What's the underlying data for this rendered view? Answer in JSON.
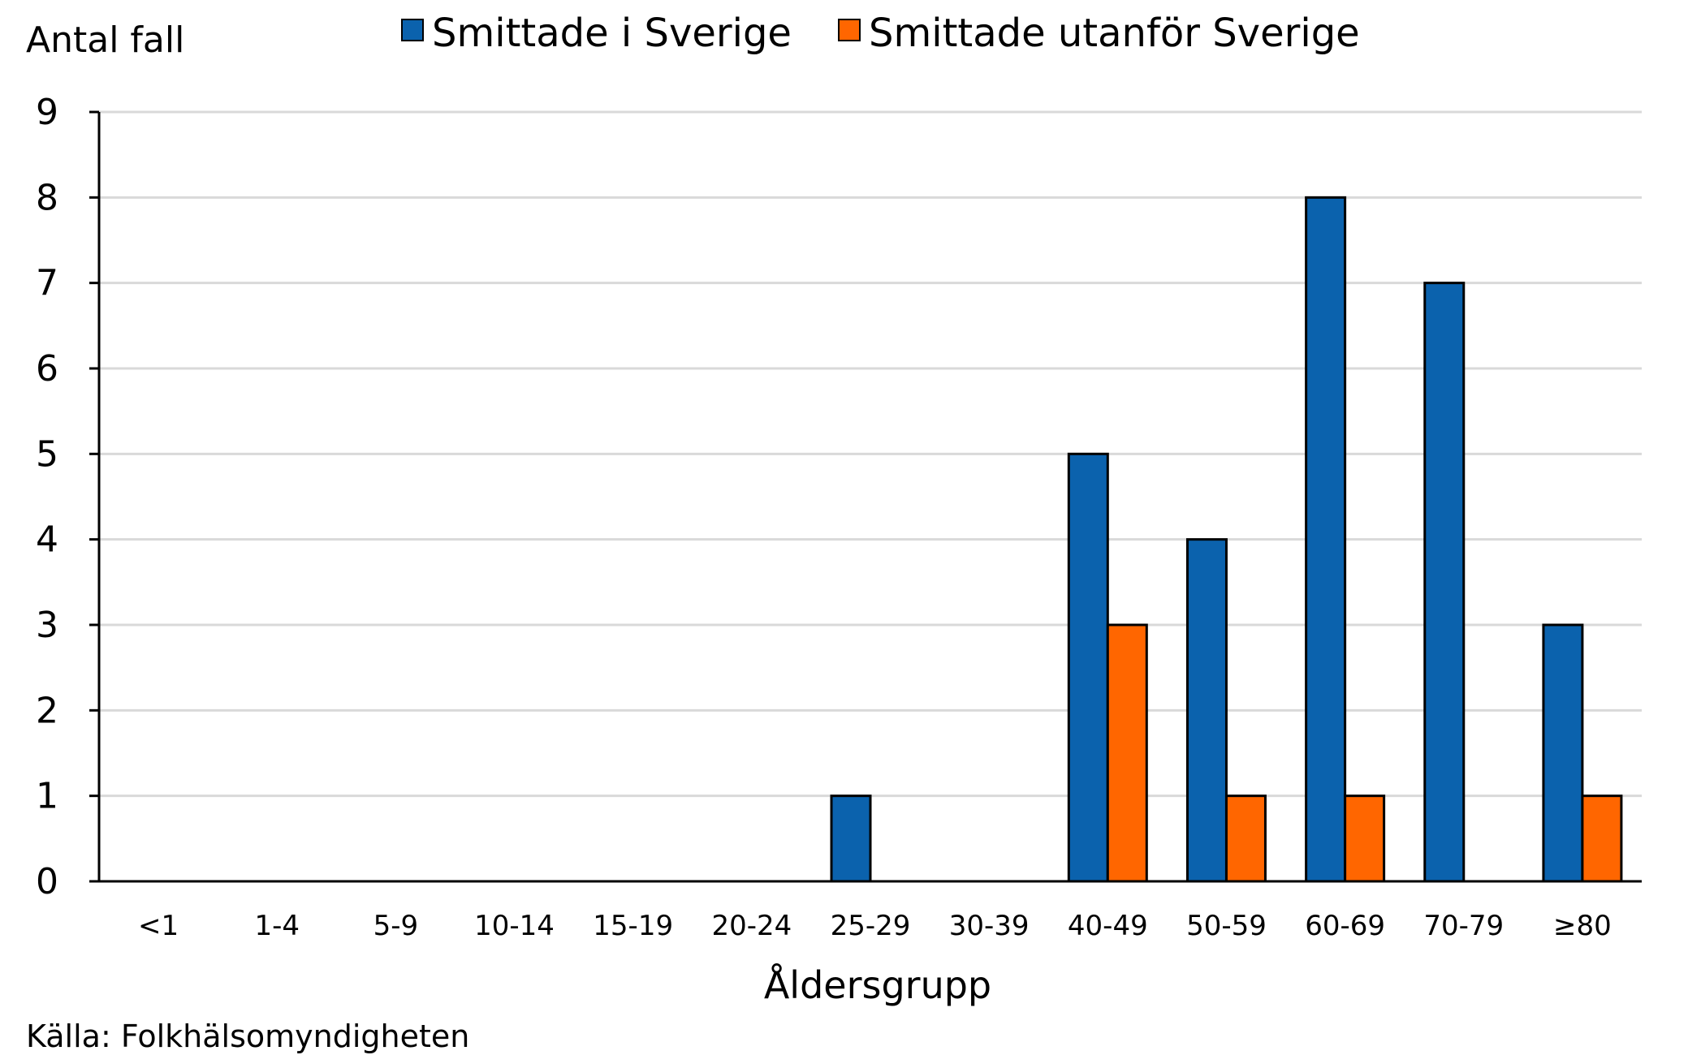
{
  "chart_data": {
    "type": "bar",
    "ylabel": "Antal fall",
    "xlabel": "Åldersgrupp",
    "source": "Källa: Folkhälsomyndigheten",
    "categories": [
      "<1",
      "1-4",
      "5-9",
      "10-14",
      "15-19",
      "20-24",
      "25-29",
      "30-39",
      "40-49",
      "50-59",
      "60-69",
      "70-79",
      "≥80"
    ],
    "series": [
      {
        "name": "Smittade i Sverige",
        "color": "#0b62ad",
        "values": [
          0,
          0,
          0,
          0,
          0,
          0,
          1,
          0,
          5,
          4,
          8,
          7,
          3
        ]
      },
      {
        "name": "Smittade utanför Sverige",
        "color": "#ff6600",
        "values": [
          0,
          0,
          0,
          0,
          0,
          0,
          0,
          0,
          3,
          1,
          1,
          0,
          1
        ]
      }
    ],
    "ylim": [
      0,
      9
    ],
    "yticks": [
      0,
      1,
      2,
      3,
      4,
      5,
      6,
      7,
      8,
      9
    ],
    "grid": true,
    "legend_position": "top"
  }
}
